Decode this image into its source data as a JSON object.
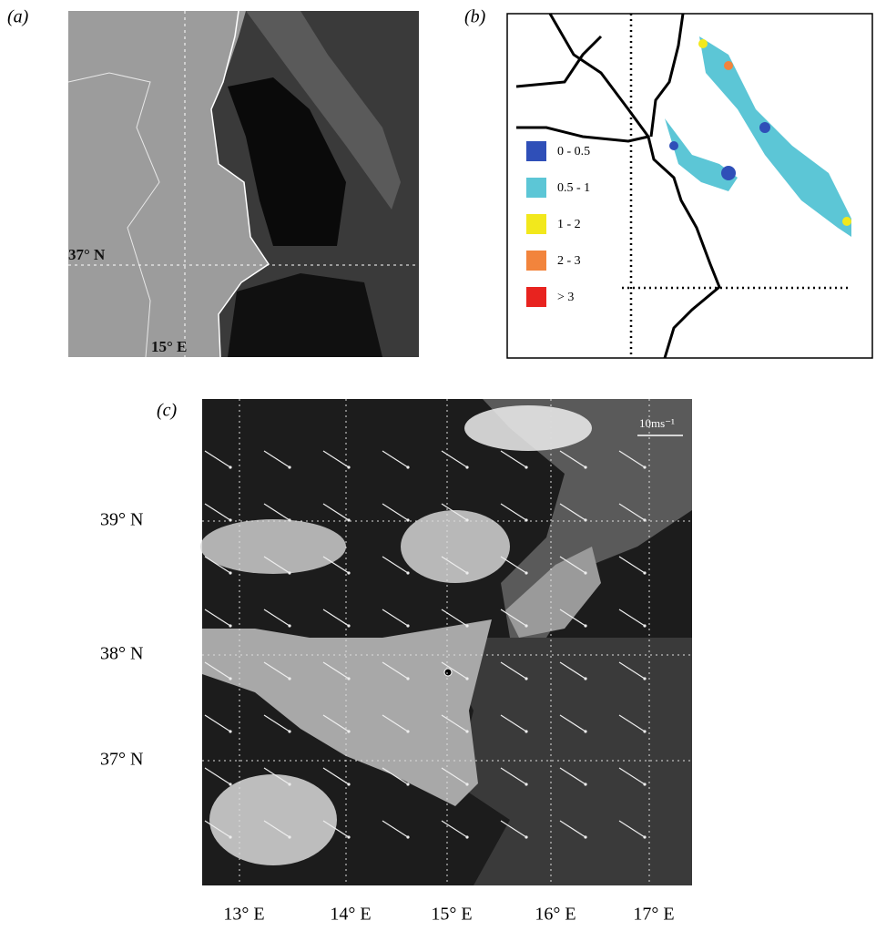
{
  "panel_a": {
    "label": "(a)",
    "lat_label": "37° N",
    "lon_label": "15° E"
  },
  "panel_b": {
    "label": "(b)",
    "legend": [
      {
        "label": "0 - 0.5",
        "color": "#2f4fb8"
      },
      {
        "label": "0.5 - 1",
        "color": "#5cc6d6"
      },
      {
        "label": "1 - 2",
        "color": "#f2e81c"
      },
      {
        "label": "2 - 3",
        "color": "#f2843c"
      },
      {
        "label": "> 3",
        "color": "#e8231f"
      }
    ]
  },
  "panel_c": {
    "label": "(c)",
    "scale_label": "10ms⁻¹",
    "lat_labels": [
      "39° N",
      "38° N",
      "37° N"
    ],
    "lon_labels": [
      "13° E",
      "14° E",
      "15° E",
      "16° E",
      "17° E"
    ]
  }
}
